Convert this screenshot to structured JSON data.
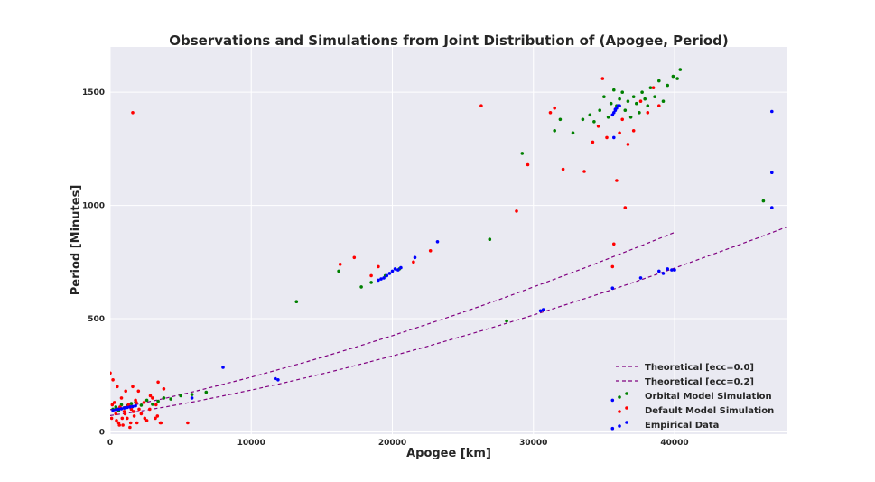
{
  "chart_data": {
    "type": "scatter",
    "title": "Observations and Simulations from Joint Distribution of (Apogee, Period)",
    "xlabel": "Apogee [km]",
    "ylabel": "Period [Minutes]",
    "xlim": [
      0,
      48000
    ],
    "ylim": [
      -10,
      1700
    ],
    "x_ticks": [
      0,
      10000,
      20000,
      30000,
      40000
    ],
    "y_ticks": [
      0,
      500,
      1000,
      1500
    ],
    "grid": true,
    "legend_position": "lower-right",
    "series": [
      {
        "name": "Theoretical [ecc=0.0]",
        "kind": "dashed-line",
        "color": "#800080",
        "x": [
          0,
          2000,
          4000,
          6000,
          8000,
          10000,
          12000,
          14000,
          16000,
          18000,
          20000,
          22000,
          24000,
          26000,
          28000,
          30000,
          32000,
          34000,
          36000,
          38000,
          40000
        ],
        "y": [
          98,
          123,
          150,
          179,
          210,
          242,
          276,
          311,
          348,
          386,
          425,
          466,
          507,
          550,
          594,
          640,
          686,
          733,
          782,
          831,
          881
        ]
      },
      {
        "name": "Theoretical [ecc=0.2]",
        "kind": "dashed-line",
        "color": "#800080",
        "x": [
          0,
          2000,
          4000,
          6000,
          8000,
          10000,
          12000,
          14000,
          16000,
          18000,
          20000,
          22000,
          24000,
          26000,
          28000,
          30000,
          32000,
          34000,
          36000,
          38000,
          40000,
          42000,
          44000,
          46000,
          48000
        ],
        "y": [
          72,
          90,
          111,
          134,
          159,
          185,
          212,
          241,
          271,
          303,
          335,
          369,
          405,
          441,
          478,
          516,
          556,
          596,
          637,
          680,
          723,
          768,
          813,
          859,
          906
        ]
      },
      {
        "name": "Orbital Model Simulation",
        "kind": "points",
        "color": "#008000",
        "x": [
          200,
          400,
          600,
          800,
          1000,
          1200,
          1500,
          1800,
          2200,
          2600,
          3000,
          3400,
          3800,
          4300,
          5000,
          5800,
          6800,
          13200,
          16200,
          17800,
          18500,
          19500,
          20500,
          26900,
          28100,
          29200,
          31500,
          31900,
          32800,
          33500,
          34000,
          34300,
          34700,
          35000,
          35300,
          35500,
          35700,
          35900,
          36100,
          36300,
          36500,
          36700,
          36900,
          37100,
          37300,
          37500,
          37700,
          37900,
          38100,
          38300,
          38600,
          38900,
          39200,
          39500,
          39900,
          40200,
          40400,
          46300
        ],
        "y": [
          100,
          110,
          95,
          120,
          105,
          115,
          125,
          130,
          118,
          140,
          122,
          135,
          150,
          145,
          160,
          165,
          175,
          575,
          710,
          640,
          660,
          690,
          720,
          850,
          490,
          1230,
          1330,
          1380,
          1320,
          1380,
          1400,
          1370,
          1420,
          1480,
          1390,
          1450,
          1510,
          1440,
          1470,
          1500,
          1420,
          1460,
          1390,
          1480,
          1450,
          1410,
          1500,
          1470,
          1440,
          1520,
          1480,
          1550,
          1460,
          1530,
          1570,
          1560,
          1600,
          1020
        ]
      },
      {
        "name": "Default Model Simulation",
        "kind": "points",
        "color": "#ff0000",
        "x": [
          0,
          100,
          200,
          300,
          400,
          500,
          600,
          700,
          800,
          900,
          1000,
          1100,
          1200,
          1300,
          1400,
          1500,
          1600,
          1700,
          1800,
          1900,
          2000,
          2200,
          2400,
          2600,
          2800,
          3000,
          3200,
          3400,
          3600,
          3800,
          5500,
          150,
          450,
          650,
          850,
          1050,
          1250,
          1450,
          1650,
          1850,
          2050,
          2450,
          2850,
          3350,
          3250,
          3550,
          1600,
          16300,
          17300,
          18500,
          19000,
          21500,
          22700,
          26300,
          28800,
          29600,
          31200,
          31500,
          32100,
          33600,
          34200,
          34600,
          34900,
          35200,
          35600,
          35700,
          35900,
          36100,
          36300,
          36500,
          36700,
          37100,
          37600,
          38100,
          38500,
          38900
        ],
        "y": [
          260,
          60,
          230,
          130,
          80,
          200,
          40,
          110,
          150,
          30,
          90,
          180,
          60,
          120,
          20,
          100,
          200,
          70,
          140,
          40,
          180,
          80,
          130,
          50,
          100,
          150,
          60,
          220,
          40,
          190,
          40,
          120,
          50,
          30,
          60,
          80,
          110,
          40,
          90,
          130,
          100,
          60,
          160,
          70,
          120,
          40,
          1410,
          740,
          770,
          690,
          730,
          750,
          800,
          1440,
          975,
          1180,
          1410,
          1430,
          1160,
          1150,
          1280,
          1350,
          1560,
          1300,
          730,
          830,
          1110,
          1320,
          1380,
          990,
          1270,
          1330,
          1460,
          1410,
          1520,
          1440
        ],
        "ordered": false
      },
      {
        "name": "Empirical Data",
        "kind": "points",
        "color": "#0000ff",
        "x": [
          200,
          400,
          600,
          800,
          1000,
          1200,
          1400,
          1600,
          1800,
          5800,
          8000,
          11700,
          11900,
          19000,
          19200,
          19400,
          19600,
          19800,
          20000,
          20200,
          20400,
          20600,
          21600,
          23200,
          30500,
          30700,
          35600,
          35700,
          35800,
          35900,
          36000,
          36100,
          35700,
          35600,
          35600,
          35800,
          35600,
          37600,
          38900,
          39200,
          39500,
          39800,
          40000,
          46900,
          46900,
          46900
        ],
        "y": [
          95,
          98,
          100,
          102,
          105,
          108,
          110,
          112,
          115,
          150,
          285,
          235,
          230,
          670,
          675,
          680,
          690,
          700,
          710,
          720,
          715,
          725,
          770,
          840,
          535,
          540,
          1400,
          1410,
          1420,
          1430,
          1440,
          1440,
          1300,
          140,
          15,
          1425,
          635,
          680,
          710,
          700,
          720,
          715,
          715,
          1415,
          1145,
          990
        ]
      }
    ]
  }
}
